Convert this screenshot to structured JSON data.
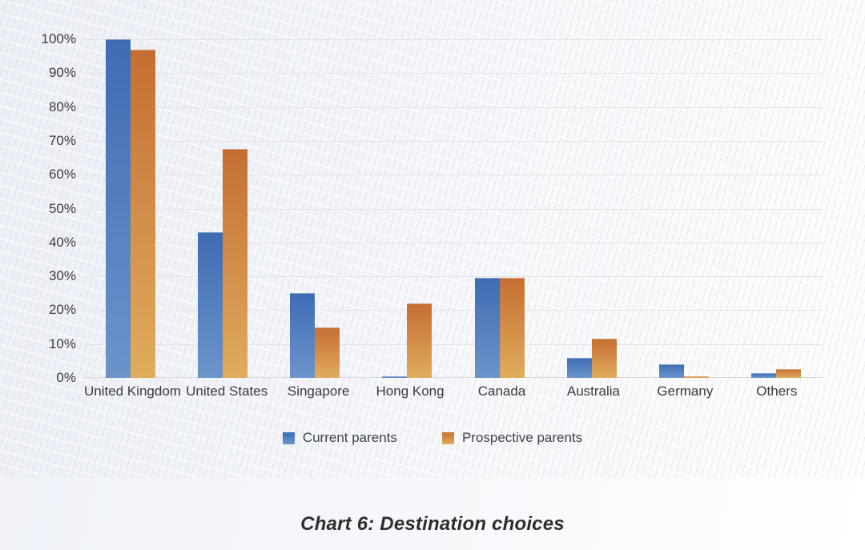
{
  "caption": "Chart 6: Destination choices",
  "colors": {
    "series_blue_top": "#3E6CB3",
    "series_blue_bottom": "#6C94CB",
    "series_orange_top": "#C56E33",
    "series_orange_bottom": "#E0AC5C",
    "gridline": "#e2e3e5",
    "background_tint": "#ecef f6",
    "text": "#3b3b3d"
  },
  "chart_data": {
    "type": "bar",
    "title": "Chart 6: Destination choices",
    "xlabel": "",
    "ylabel": "",
    "ylim": [
      0,
      100
    ],
    "ytick_step": 10,
    "ytick_labels": [
      "0%",
      "10%",
      "20%",
      "30%",
      "40%",
      "50%",
      "60%",
      "70%",
      "80%",
      "90%",
      "100%"
    ],
    "grid": true,
    "legend_position": "bottom",
    "categories": [
      "United Kingdom",
      "United States",
      "Singapore",
      "Hong Kong",
      "Canada",
      "Australia",
      "Germany",
      "Others"
    ],
    "series": [
      {
        "name": "Current parents",
        "color_top": "#3E6CB3",
        "color_bottom": "#6C94CB",
        "values": [
          100,
          43,
          25,
          0.5,
          29.5,
          6,
          4,
          1.5
        ]
      },
      {
        "name": "Prospective parents",
        "color_top": "#C56E33",
        "color_bottom": "#E0AC5C",
        "values": [
          97,
          67.5,
          15,
          22,
          29.5,
          11.5,
          0.5,
          2.5
        ]
      }
    ]
  }
}
